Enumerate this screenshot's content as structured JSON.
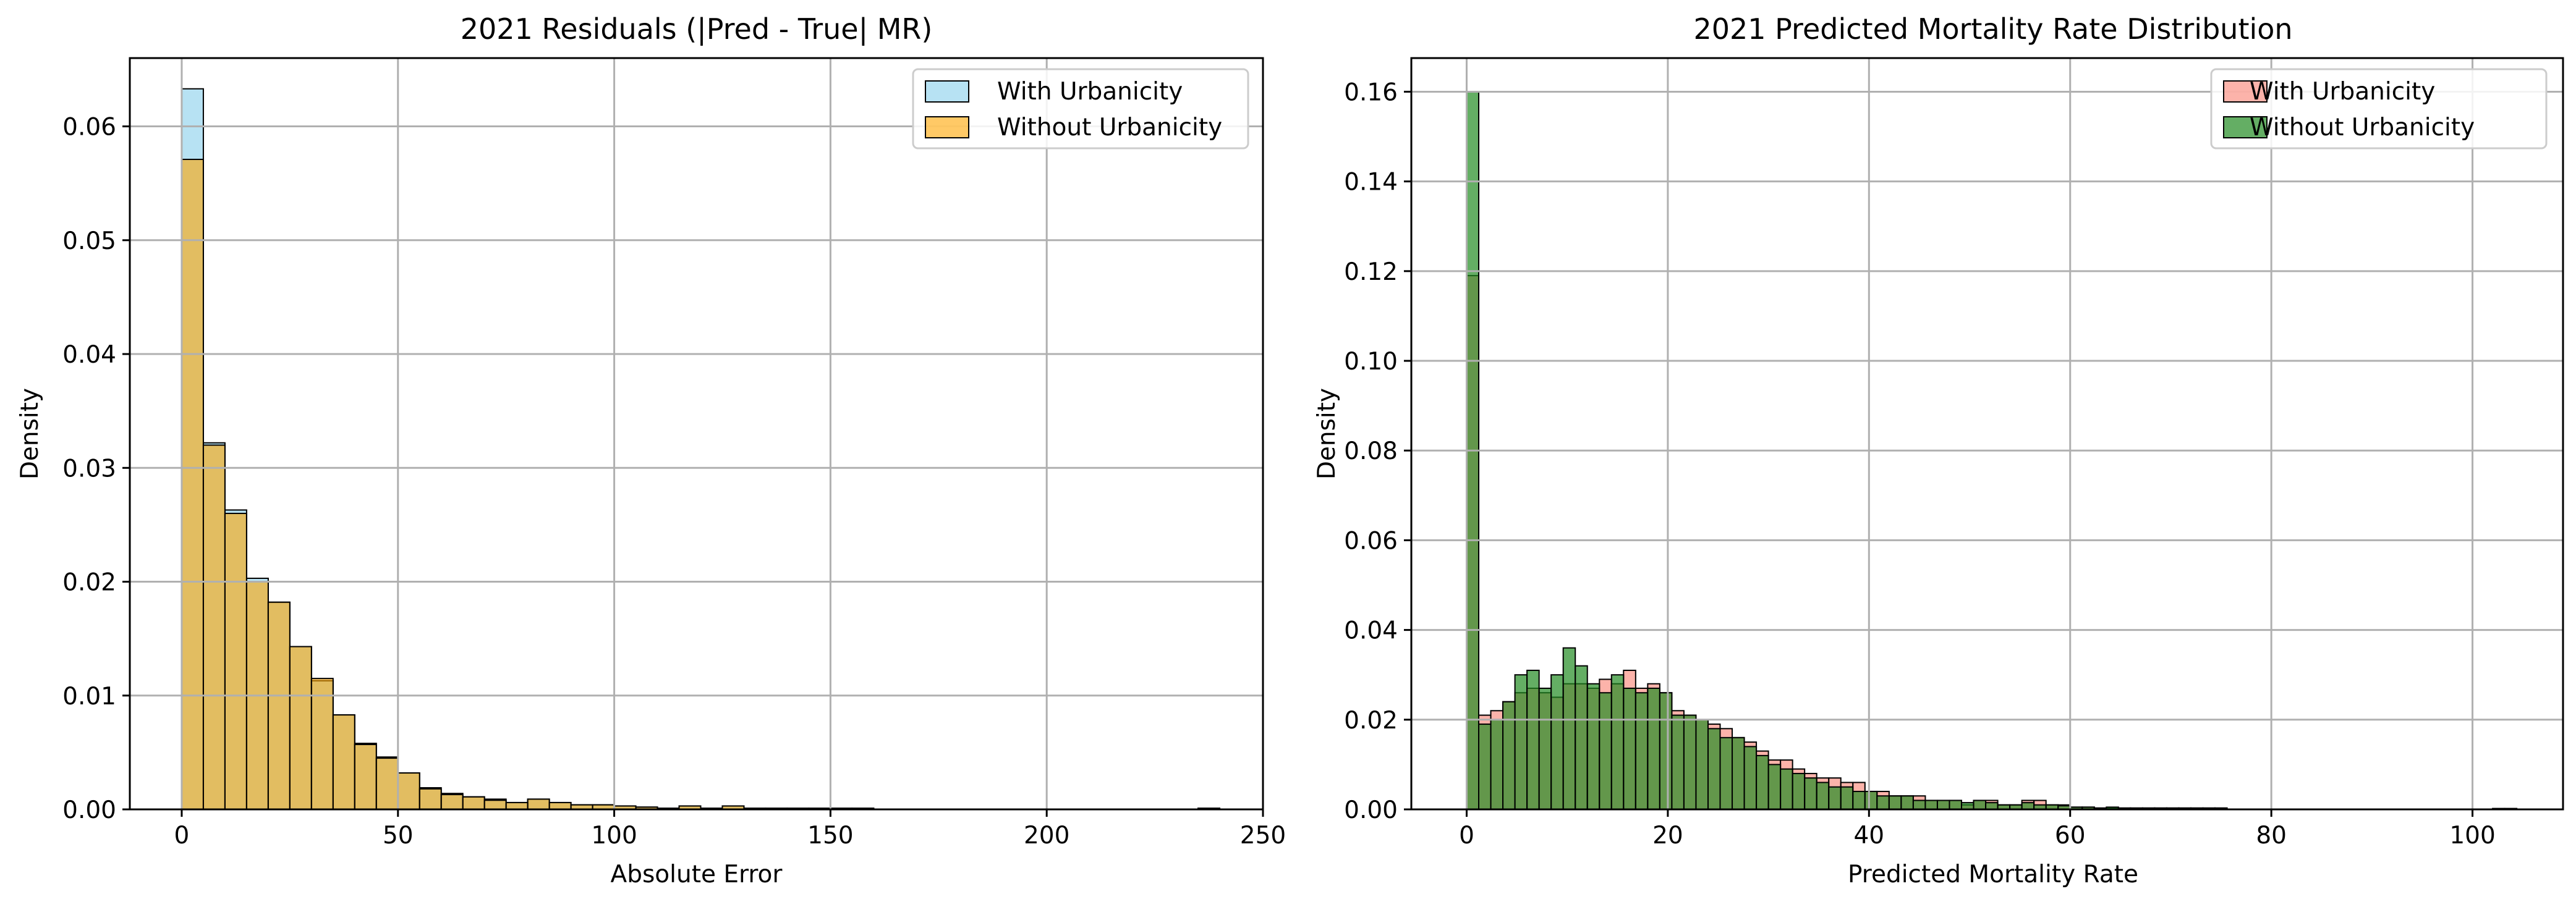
{
  "colors": {
    "left_with": "#87CEEB",
    "left_without": "#FFA500",
    "right_with": "#FA8072",
    "right_without": "#228B22",
    "edge": "#000000",
    "grid": "#b0b0b0"
  },
  "chart_data": [
    {
      "type": "bar",
      "title": "2021 Residuals (|Pred - True| MR)",
      "xlabel": "Absolute Error",
      "ylabel": "Density",
      "xlim": [
        -12,
        250
      ],
      "ylim": [
        0,
        0.066
      ],
      "xticks": [
        0,
        50,
        100,
        150,
        200,
        250
      ],
      "yticks": [
        0.0,
        0.01,
        0.02,
        0.03,
        0.04,
        0.05,
        0.06
      ],
      "xtick_labels": [
        "0",
        "50",
        "100",
        "150",
        "200",
        "250"
      ],
      "ytick_labels": [
        "0.00",
        "0.01",
        "0.02",
        "0.03",
        "0.04",
        "0.05",
        "0.06"
      ],
      "grid": true,
      "legend_position": "top-right",
      "bin_width": 5,
      "bin_starts": [
        0,
        5,
        10,
        15,
        20,
        25,
        30,
        35,
        40,
        45,
        50,
        55,
        60,
        65,
        70,
        75,
        80,
        85,
        90,
        95,
        100,
        105,
        110,
        115,
        120,
        125,
        130,
        135,
        140,
        145,
        150,
        155,
        160,
        165,
        170,
        175,
        180,
        185,
        190,
        195,
        200,
        205,
        210,
        215,
        220,
        225,
        230,
        235
      ],
      "series": [
        {
          "name": "With Urbanicity",
          "color_key": "left_with",
          "values": [
            0.0633,
            0.0322,
            0.0263,
            0.0203,
            0.0182,
            0.0143,
            0.0113,
            0.0083,
            0.0058,
            0.0046,
            0.0032,
            0.0019,
            0.0014,
            0.0011,
            0.0009,
            0.0006,
            0.0009,
            0.0006,
            0.0004,
            0.0004,
            0.0003,
            0.0002,
            0.0001,
            0.0003,
            0.0001,
            0.0003,
            0.0001,
            0.0001,
            0.0001,
            0.0001,
            0.0001,
            0.0001,
            0.0,
            0.0,
            0.0,
            0.0,
            0.0,
            0.0,
            0.0,
            0.0,
            0.0,
            0.0,
            0.0,
            0.0,
            0.0,
            0.0,
            0.0,
            0.0001
          ]
        },
        {
          "name": "Without Urbanicity",
          "color_key": "left_without",
          "values": [
            0.0571,
            0.032,
            0.026,
            0.02,
            0.0182,
            0.0143,
            0.0115,
            0.0083,
            0.0057,
            0.0045,
            0.0032,
            0.0018,
            0.0013,
            0.0011,
            0.0008,
            0.0006,
            0.0009,
            0.0006,
            0.0004,
            0.0004,
            0.0003,
            0.0002,
            0.0001,
            0.0003,
            0.0001,
            0.0003,
            0.0001,
            0.0001,
            0.0001,
            0.0001,
            0.0001,
            0.0001,
            0.0,
            0.0,
            0.0,
            0.0,
            0.0,
            0.0,
            0.0,
            0.0,
            0.0,
            0.0,
            0.0,
            0.0,
            0.0,
            0.0,
            0.0,
            0.0001
          ]
        }
      ]
    },
    {
      "type": "bar",
      "title": "2021 Predicted Mortality Rate Distribution",
      "xlabel": "Predicted Mortality Rate",
      "ylabel": "Density",
      "xlim": [
        -5.5,
        109
      ],
      "ylim": [
        0,
        0.1675
      ],
      "xticks": [
        0,
        20,
        40,
        60,
        80,
        100
      ],
      "yticks": [
        0.0,
        0.02,
        0.04,
        0.06,
        0.08,
        0.1,
        0.12,
        0.14,
        0.16
      ],
      "xtick_labels": [
        "0",
        "20",
        "40",
        "60",
        "80",
        "100"
      ],
      "ytick_labels": [
        "0.00",
        "0.02",
        "0.04",
        "0.06",
        "0.08",
        "0.10",
        "0.12",
        "0.14",
        "0.16"
      ],
      "grid": true,
      "legend_position": "top-right",
      "series": [
        {
          "name": "With Urbanicity",
          "color_key": "right_with",
          "bin_width": 1.2,
          "bin_starts": [
            0,
            1.2,
            2.4,
            3.6,
            4.8,
            6,
            7.2,
            8.4,
            9.6,
            10.8,
            12,
            13.2,
            14.4,
            15.6,
            16.8,
            18,
            19.2,
            20.4,
            21.6,
            22.8,
            24,
            25.2,
            26.4,
            27.6,
            28.8,
            30,
            31.2,
            32.4,
            33.6,
            34.8,
            36,
            37.2,
            38.4,
            39.6,
            40.8,
            42,
            43.2,
            44.4,
            45.6,
            46.8,
            48,
            49.2,
            50.4,
            51.6,
            52.8,
            54,
            55.2,
            56.4,
            57.6,
            58.8,
            60,
            61.2,
            62.4,
            63.6,
            64.8,
            66,
            67.2,
            68.4,
            69.6,
            70.8,
            72,
            73.2,
            74.4
          ],
          "values": [
            0.119,
            0.021,
            0.022,
            0.024,
            0.026,
            0.027,
            0.026,
            0.025,
            0.028,
            0.028,
            0.027,
            0.029,
            0.028,
            0.031,
            0.027,
            0.028,
            0.026,
            0.022,
            0.021,
            0.02,
            0.019,
            0.018,
            0.016,
            0.015,
            0.013,
            0.011,
            0.011,
            0.009,
            0.008,
            0.007,
            0.007,
            0.006,
            0.006,
            0.004,
            0.004,
            0.003,
            0.003,
            0.003,
            0.002,
            0.002,
            0.002,
            0.001,
            0.002,
            0.002,
            0.001,
            0.001,
            0.002,
            0.002,
            0.001,
            0.001,
            0.0005,
            0.0005,
            0.0003,
            0.0003,
            0.0003,
            0.0003,
            0.0003,
            0.0003,
            0.0003,
            0.0003,
            0.0003,
            0.0003,
            0.0003
          ]
        },
        {
          "name": "Without Urbanicity",
          "color_key": "right_without",
          "bin_width": 1.2,
          "bin_starts": [
            0,
            1.2,
            2.4,
            3.6,
            4.8,
            6,
            7.2,
            8.4,
            9.6,
            10.8,
            12,
            13.2,
            14.4,
            15.6,
            16.8,
            18,
            19.2,
            20.4,
            21.6,
            22.8,
            24,
            25.2,
            26.4,
            27.6,
            28.8,
            30,
            31.2,
            32.4,
            33.6,
            34.8,
            36,
            37.2,
            38.4,
            39.6,
            40.8,
            42,
            43.2,
            44.4,
            45.6,
            46.8,
            48,
            49.2,
            50.4,
            51.6,
            52.8,
            54,
            55.2,
            56.4,
            57.6,
            58.8,
            60,
            61.2,
            62.4,
            63.6,
            64.8,
            66,
            67.2,
            68.4,
            69.6,
            70.8,
            72,
            73.2,
            74.4,
            75.6,
            76.8,
            78,
            79.2,
            80.4,
            81.6,
            82.8,
            84,
            85.2,
            86.4,
            87.6,
            88.8,
            90,
            91.2,
            92.4,
            93.6,
            94.8,
            96,
            97.2,
            98.4,
            99.6,
            100.8,
            102,
            103.2
          ],
          "values": [
            0.16,
            0.019,
            0.02,
            0.024,
            0.03,
            0.031,
            0.027,
            0.03,
            0.036,
            0.032,
            0.028,
            0.026,
            0.03,
            0.027,
            0.026,
            0.027,
            0.026,
            0.021,
            0.021,
            0.02,
            0.018,
            0.016,
            0.016,
            0.014,
            0.012,
            0.01,
            0.009,
            0.008,
            0.007,
            0.006,
            0.005,
            0.005,
            0.004,
            0.004,
            0.003,
            0.003,
            0.003,
            0.002,
            0.002,
            0.002,
            0.002,
            0.0015,
            0.002,
            0.0015,
            0.001,
            0.001,
            0.0015,
            0.001,
            0.001,
            0.0008,
            0.0005,
            0.0005,
            0.0003,
            0.0005,
            0.0003,
            0.0003,
            0.0003,
            0.0003,
            0.0003,
            0.0003,
            0.0003,
            0.0003,
            0.0003,
            0,
            0,
            0,
            0,
            0,
            0,
            0,
            0,
            0,
            0,
            0,
            0,
            0,
            0,
            0,
            0,
            0,
            0,
            0,
            0,
            0,
            0,
            0.0002,
            0.0002
          ]
        }
      ]
    }
  ]
}
